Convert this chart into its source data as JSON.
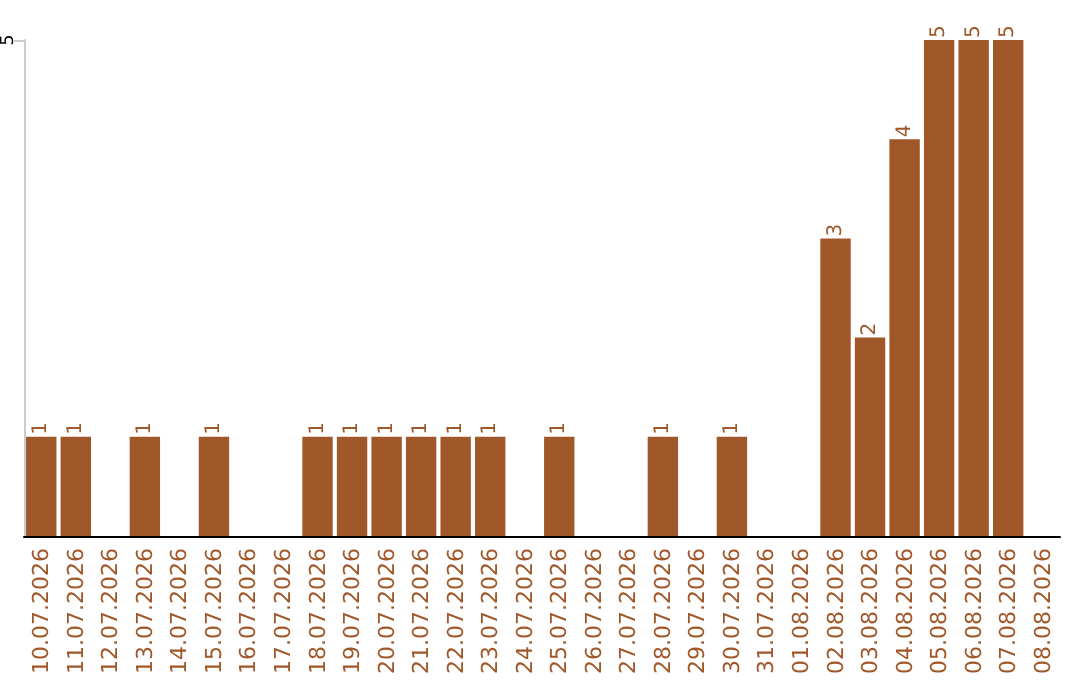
{
  "chart_data": {
    "type": "bar",
    "categories": [
      "10.07.2026",
      "11.07.2026",
      "12.07.2026",
      "13.07.2026",
      "14.07.2026",
      "15.07.2026",
      "16.07.2026",
      "17.07.2026",
      "18.07.2026",
      "19.07.2026",
      "20.07.2026",
      "21.07.2026",
      "22.07.2026",
      "23.07.2026",
      "24.07.2026",
      "25.07.2026",
      "26.07.2026",
      "27.07.2026",
      "28.07.2026",
      "29.07.2026",
      "30.07.2026",
      "31.07.2026",
      "01.08.2026",
      "02.08.2026",
      "03.08.2026",
      "04.08.2026",
      "05.08.2026",
      "06.08.2026",
      "07.08.2026",
      "08.08.2026"
    ],
    "values": [
      1,
      1,
      0,
      1,
      0,
      1,
      0,
      0,
      1,
      1,
      1,
      1,
      1,
      1,
      0,
      1,
      0,
      0,
      1,
      0,
      1,
      0,
      0,
      3,
      2,
      4,
      5,
      5,
      5,
      0
    ],
    "value_labels": [
      "1",
      "1",
      null,
      "1",
      null,
      "1",
      null,
      null,
      "1",
      "1",
      "1",
      "1",
      "1",
      "1",
      null,
      "1",
      null,
      null,
      "1",
      null,
      "1",
      null,
      null,
      "3",
      "2",
      "4",
      "5",
      "5",
      "5",
      null
    ],
    "color": "#a0582a",
    "ylim": [
      0,
      5
    ],
    "yticks": [
      5
    ]
  }
}
